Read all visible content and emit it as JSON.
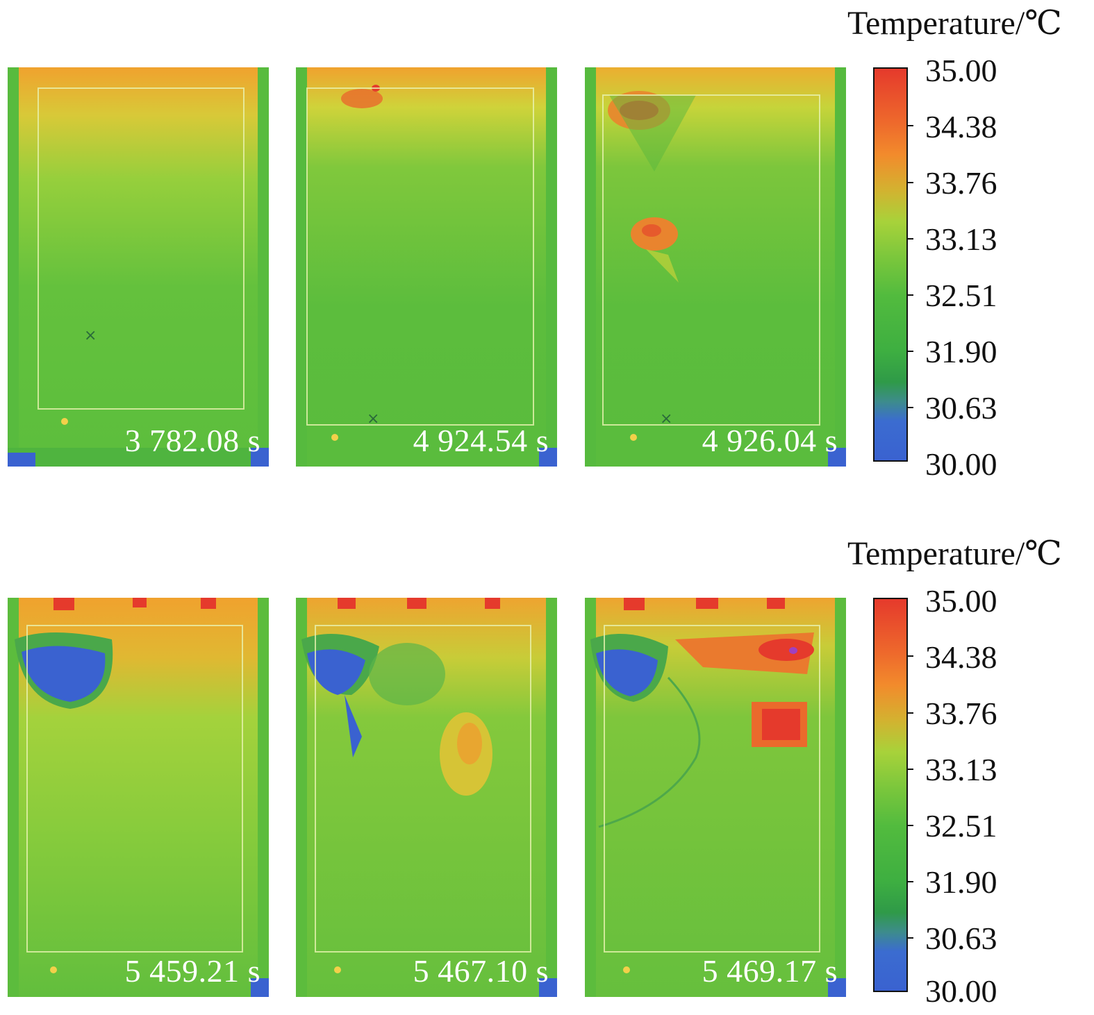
{
  "colorbar": {
    "title": "Temperature/℃",
    "ticks": [
      "35.00",
      "34.38",
      "33.76",
      "33.13",
      "32.51",
      "31.90",
      "30.63",
      "30.00"
    ]
  },
  "panels": [
    {
      "time": "3 782.08 s"
    },
    {
      "time": "4 924.54 s"
    },
    {
      "time": "4 926.04 s"
    },
    {
      "time": "5 459.21 s"
    },
    {
      "time": "5 467.10 s"
    },
    {
      "time": "5 469.17 s"
    }
  ],
  "colors": {
    "hot": "#e53a2c",
    "warm": "#f28b2c",
    "yellow": "#c9d63a",
    "green": "#6cc23c",
    "green_dark": "#52b83e",
    "cold": "#3a62d0"
  }
}
